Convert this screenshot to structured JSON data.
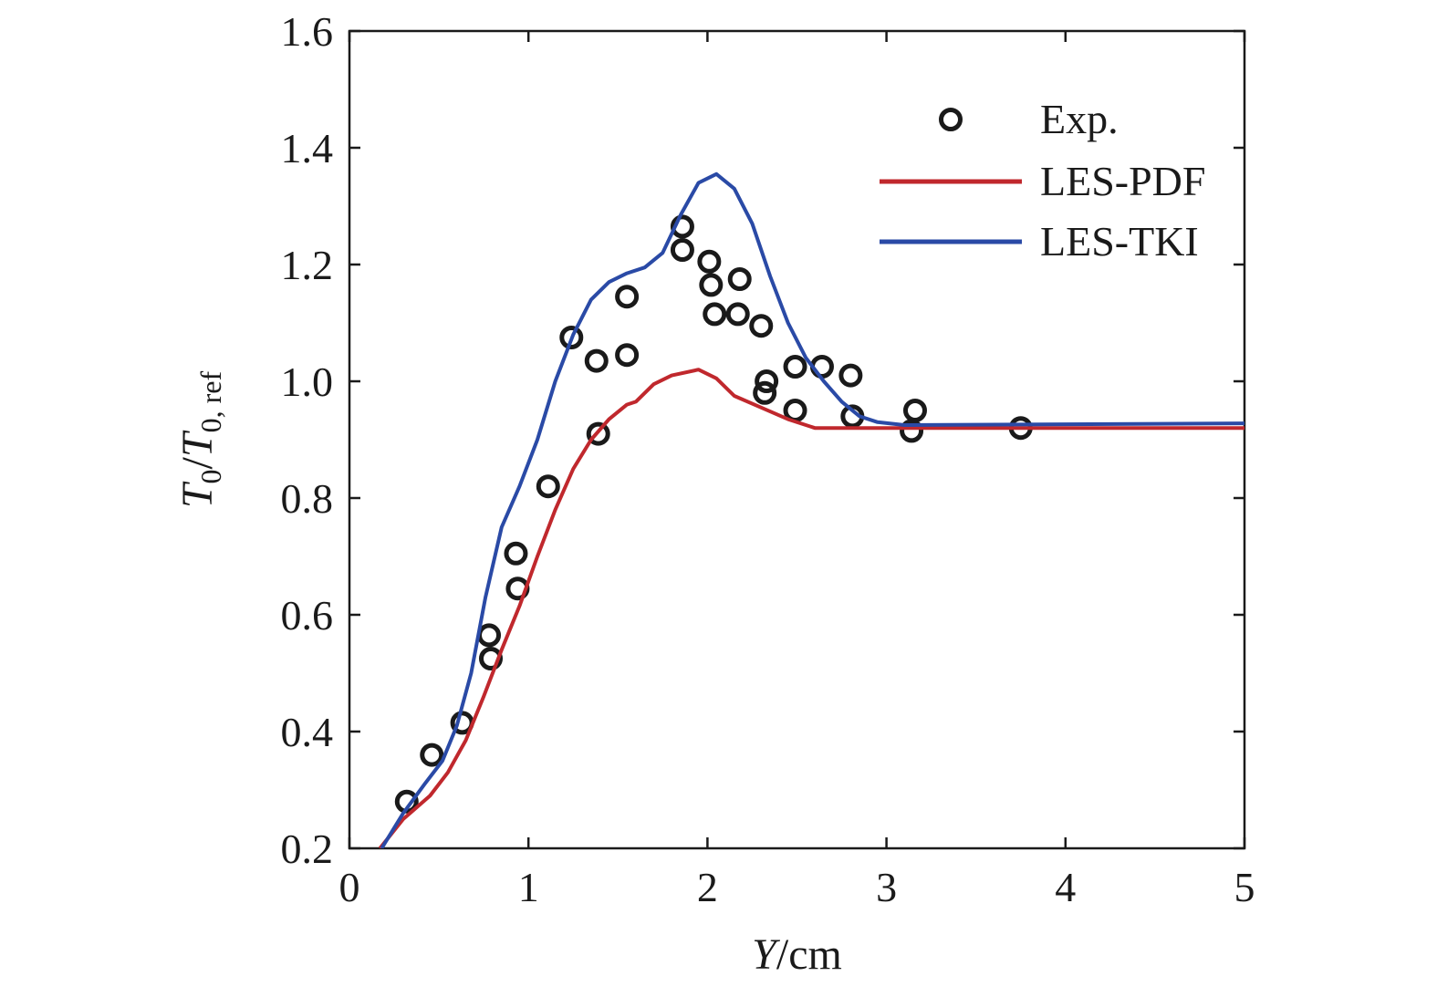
{
  "chart_data": {
    "type": "line",
    "title": "",
    "xlabel": "Y/cm",
    "ylabel": "T0/T0, ref",
    "xlabel_parts": {
      "var": "Y",
      "unit": "/cm"
    },
    "ylabel_parts": {
      "num": "T",
      "num_sub": "0",
      "den": "T",
      "den_sub": "0, ref"
    },
    "xlim": [
      0,
      5
    ],
    "ylim": [
      0.2,
      1.6
    ],
    "xticks": [
      0,
      1,
      2,
      3,
      4,
      5
    ],
    "xtick_labels": [
      "0",
      "1",
      "2",
      "3",
      "4",
      "5"
    ],
    "yticks": [
      0.2,
      0.4,
      0.6,
      0.8,
      1.0,
      1.2,
      1.4,
      1.6
    ],
    "ytick_labels": [
      "0.2",
      "0.4",
      "0.6",
      "0.8",
      "1.0",
      "1.2",
      "1.4",
      "1.6"
    ],
    "grid": false,
    "legend_position": "top-right",
    "series": [
      {
        "name": "Exp.",
        "kind": "scatter",
        "marker": "open-circle",
        "color": "#1a1a1a",
        "points": [
          [
            0.32,
            0.28
          ],
          [
            0.46,
            0.36
          ],
          [
            0.63,
            0.415
          ],
          [
            0.78,
            0.565
          ],
          [
            0.79,
            0.525
          ],
          [
            0.93,
            0.705
          ],
          [
            0.94,
            0.645
          ],
          [
            1.11,
            0.82
          ],
          [
            1.24,
            1.075
          ],
          [
            1.39,
            0.91
          ],
          [
            1.38,
            1.035
          ],
          [
            1.55,
            1.145
          ],
          [
            1.55,
            1.045
          ],
          [
            1.86,
            1.265
          ],
          [
            1.86,
            1.225
          ],
          [
            2.01,
            1.205
          ],
          [
            2.02,
            1.165
          ],
          [
            2.04,
            1.115
          ],
          [
            2.18,
            1.175
          ],
          [
            2.17,
            1.115
          ],
          [
            2.3,
            1.095
          ],
          [
            2.32,
            0.98
          ],
          [
            2.33,
            1.0
          ],
          [
            2.49,
            1.025
          ],
          [
            2.49,
            0.95
          ],
          [
            2.64,
            1.025
          ],
          [
            2.8,
            1.01
          ],
          [
            2.81,
            0.94
          ],
          [
            3.14,
            0.915
          ],
          [
            3.16,
            0.95
          ],
          [
            3.75,
            0.92
          ]
        ]
      },
      {
        "name": "LES-PDF",
        "kind": "line",
        "color": "#c0282d",
        "points": [
          [
            0.17,
            0.2
          ],
          [
            0.3,
            0.25
          ],
          [
            0.45,
            0.29
          ],
          [
            0.55,
            0.33
          ],
          [
            0.65,
            0.385
          ],
          [
            0.75,
            0.46
          ],
          [
            0.85,
            0.54
          ],
          [
            0.95,
            0.615
          ],
          [
            1.05,
            0.7
          ],
          [
            1.15,
            0.78
          ],
          [
            1.25,
            0.85
          ],
          [
            1.35,
            0.9
          ],
          [
            1.45,
            0.935
          ],
          [
            1.55,
            0.96
          ],
          [
            1.6,
            0.965
          ],
          [
            1.7,
            0.995
          ],
          [
            1.8,
            1.01
          ],
          [
            1.95,
            1.02
          ],
          [
            2.05,
            1.005
          ],
          [
            2.15,
            0.975
          ],
          [
            2.3,
            0.955
          ],
          [
            2.45,
            0.935
          ],
          [
            2.6,
            0.92
          ],
          [
            3.0,
            0.92
          ],
          [
            5.0,
            0.92
          ]
        ]
      },
      {
        "name": "LES-TKI",
        "kind": "line",
        "color": "#2a4aa6",
        "points": [
          [
            0.18,
            0.2
          ],
          [
            0.3,
            0.26
          ],
          [
            0.42,
            0.31
          ],
          [
            0.52,
            0.35
          ],
          [
            0.6,
            0.41
          ],
          [
            0.68,
            0.5
          ],
          [
            0.76,
            0.63
          ],
          [
            0.85,
            0.75
          ],
          [
            0.95,
            0.82
          ],
          [
            1.05,
            0.9
          ],
          [
            1.15,
            1.0
          ],
          [
            1.25,
            1.08
          ],
          [
            1.35,
            1.14
          ],
          [
            1.45,
            1.17
          ],
          [
            1.55,
            1.185
          ],
          [
            1.65,
            1.195
          ],
          [
            1.75,
            1.22
          ],
          [
            1.85,
            1.285
          ],
          [
            1.95,
            1.34
          ],
          [
            2.05,
            1.355
          ],
          [
            2.15,
            1.33
          ],
          [
            2.25,
            1.27
          ],
          [
            2.35,
            1.18
          ],
          [
            2.45,
            1.1
          ],
          [
            2.55,
            1.04
          ],
          [
            2.65,
            1.0
          ],
          [
            2.75,
            0.965
          ],
          [
            2.85,
            0.94
          ],
          [
            2.95,
            0.93
          ],
          [
            3.1,
            0.925
          ],
          [
            5.0,
            0.928
          ]
        ]
      }
    ]
  }
}
